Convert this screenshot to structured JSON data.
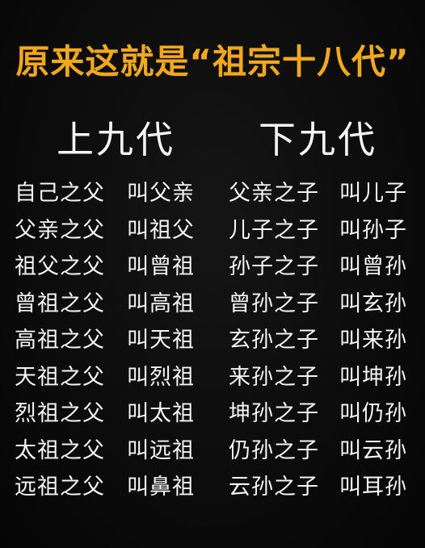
{
  "title": "原来这就是“祖宗十八代”",
  "upper": {
    "heading": "上九代",
    "rows": [
      {
        "relation": "自己之父",
        "name": "叫父亲"
      },
      {
        "relation": "父亲之父",
        "name": "叫祖父"
      },
      {
        "relation": "祖父之父",
        "name": "叫曾祖"
      },
      {
        "relation": "曾祖之父",
        "name": "叫高祖"
      },
      {
        "relation": "高祖之父",
        "name": "叫天祖"
      },
      {
        "relation": "天祖之父",
        "name": "叫烈祖"
      },
      {
        "relation": "烈祖之父",
        "name": "叫太祖"
      },
      {
        "relation": "太祖之父",
        "name": "叫远祖"
      },
      {
        "relation": "远祖之父",
        "name": "叫鼻祖"
      }
    ]
  },
  "lower": {
    "heading": "下九代",
    "rows": [
      {
        "relation": "父亲之子",
        "name": "叫儿子"
      },
      {
        "relation": "儿子之子",
        "name": "叫孙子"
      },
      {
        "relation": "孙子之子",
        "name": "叫曾孙"
      },
      {
        "relation": "曾孙之子",
        "name": "叫玄孙"
      },
      {
        "relation": "玄孙之子",
        "name": "叫来孙"
      },
      {
        "relation": "来孙之子",
        "name": "叫坤孙"
      },
      {
        "relation": "坤孙之子",
        "name": "叫仍孙"
      },
      {
        "relation": "仍孙之子",
        "name": "叫云孙"
      },
      {
        "relation": "云孙之子",
        "name": "叫耳孙"
      }
    ]
  },
  "colors": {
    "title": "#f2a81d",
    "text": "#f5f5f5",
    "background": "#0b0b0b"
  }
}
